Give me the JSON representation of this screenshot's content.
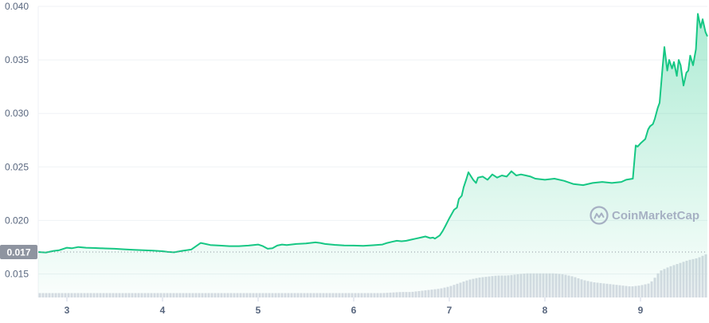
{
  "watermark": {
    "text": "CoinMarketCap",
    "icon": "coinmarketcap-logo"
  },
  "colors": {
    "line": "#16c784",
    "fill_top": "#16c784",
    "grid": "#eff2f5",
    "volume": "#d7dbe3",
    "current_badge_bg": "#8e94a0",
    "current_badge_text": "#ffffff",
    "axis_text": "#58667e"
  },
  "current_price_label": "0.017",
  "chart_data": {
    "type": "area",
    "title": "",
    "xlabel": "",
    "ylabel": "",
    "x_ticks": [
      "3",
      "4",
      "5",
      "6",
      "7",
      "8",
      "9"
    ],
    "y_ticks": [
      "0.040",
      "0.035",
      "0.030",
      "0.025",
      "0.020",
      "0.015"
    ],
    "ylim": [
      0.0128,
      0.04
    ],
    "xlim": [
      2.7,
      9.7
    ],
    "grid": true,
    "legend": "none",
    "current_price": 0.01705,
    "series": [
      {
        "x": [
          2.7,
          2.78,
          2.86,
          2.92,
          3.0,
          3.05,
          3.12,
          3.2,
          3.3,
          3.4,
          3.5,
          3.6,
          3.7,
          3.8,
          3.9,
          4.0,
          4.05,
          4.12,
          4.2,
          4.3,
          4.4,
          4.45,
          4.5,
          4.6,
          4.7,
          4.8,
          4.9,
          5.0,
          5.05,
          5.1,
          5.15,
          5.2,
          5.25,
          5.3,
          5.4,
          5.5,
          5.6,
          5.65,
          5.7,
          5.8,
          5.9,
          6.0,
          6.1,
          6.2,
          6.3,
          6.35,
          6.4,
          6.45,
          6.5,
          6.55,
          6.6,
          6.65,
          6.7,
          6.75,
          6.8,
          6.83,
          6.85,
          6.9,
          6.93,
          6.96,
          7.0,
          7.05,
          7.08,
          7.1,
          7.13,
          7.15,
          7.18,
          7.2,
          7.25,
          7.28,
          7.3,
          7.35,
          7.4,
          7.45,
          7.5,
          7.55,
          7.6,
          7.65,
          7.7,
          7.75,
          7.8,
          7.85,
          7.9,
          8.0,
          8.1,
          8.2,
          8.3,
          8.4,
          8.5,
          8.6,
          8.7,
          8.8,
          8.85,
          8.92,
          8.95,
          8.97,
          9.0,
          9.05,
          9.08,
          9.1,
          9.13,
          9.15,
          9.18,
          9.2,
          9.23,
          9.25,
          9.28,
          9.3,
          9.33,
          9.35,
          9.38,
          9.4,
          9.42,
          9.45,
          9.48,
          9.5,
          9.52,
          9.55,
          9.58,
          9.6,
          9.63,
          9.65,
          9.68,
          9.7
        ],
        "values": [
          0.01705,
          0.017,
          0.01715,
          0.01722,
          0.01745,
          0.0174,
          0.01752,
          0.01745,
          0.01742,
          0.01738,
          0.01735,
          0.0173,
          0.01726,
          0.01722,
          0.01718,
          0.01712,
          0.01706,
          0.01702,
          0.01715,
          0.01728,
          0.0179,
          0.0178,
          0.0177,
          0.01765,
          0.0176,
          0.0176,
          0.01765,
          0.01775,
          0.0176,
          0.01735,
          0.0174,
          0.01765,
          0.01775,
          0.0177,
          0.0178,
          0.01785,
          0.01795,
          0.0179,
          0.0178,
          0.01772,
          0.01766,
          0.01765,
          0.01762,
          0.01768,
          0.01775,
          0.0179,
          0.018,
          0.0181,
          0.01805,
          0.0181,
          0.0182,
          0.0183,
          0.0184,
          0.0185,
          0.01835,
          0.0184,
          0.0183,
          0.0186,
          0.019,
          0.0195,
          0.0202,
          0.021,
          0.0212,
          0.022,
          0.0223,
          0.0231,
          0.0239,
          0.0245,
          0.0238,
          0.0235,
          0.024,
          0.0241,
          0.0238,
          0.0243,
          0.024,
          0.0242,
          0.0241,
          0.0246,
          0.0242,
          0.0243,
          0.0242,
          0.0241,
          0.0239,
          0.0238,
          0.0239,
          0.0237,
          0.0234,
          0.0233,
          0.0235,
          0.0236,
          0.0235,
          0.0236,
          0.0238,
          0.0239,
          0.027,
          0.0269,
          0.0272,
          0.0276,
          0.0285,
          0.0288,
          0.029,
          0.0295,
          0.0305,
          0.031,
          0.0342,
          0.0362,
          0.034,
          0.035,
          0.0342,
          0.0348,
          0.0335,
          0.035,
          0.0345,
          0.0326,
          0.0338,
          0.034,
          0.0354,
          0.0345,
          0.036,
          0.0393,
          0.038,
          0.0388,
          0.0376,
          0.0372
        ]
      }
    ],
    "volume": {
      "x": [
        2.7,
        2.9,
        3.1,
        3.3,
        3.5,
        3.7,
        3.9,
        4.1,
        4.3,
        4.5,
        4.7,
        4.9,
        5.1,
        5.3,
        5.5,
        5.7,
        5.9,
        6.1,
        6.3,
        6.5,
        6.6,
        6.7,
        6.8,
        6.9,
        7.0,
        7.1,
        7.2,
        7.3,
        7.4,
        7.5,
        7.6,
        7.7,
        7.8,
        7.9,
        8.0,
        8.1,
        8.2,
        8.3,
        8.4,
        8.5,
        8.6,
        8.7,
        8.8,
        8.9,
        9.0,
        9.1,
        9.15,
        9.2,
        9.3,
        9.4,
        9.5,
        9.6,
        9.7
      ],
      "values": [
        4,
        4,
        4,
        4,
        4,
        4,
        4,
        4,
        4,
        4,
        4,
        4,
        4,
        4,
        4,
        4,
        4,
        4,
        4,
        5,
        5,
        6,
        7,
        8,
        10,
        13,
        16,
        18,
        19,
        20,
        20,
        21,
        22,
        22,
        22,
        22,
        21,
        19,
        16,
        14,
        13,
        12,
        11,
        10,
        11,
        13,
        18,
        24,
        28,
        31,
        34,
        36,
        40
      ]
    }
  }
}
